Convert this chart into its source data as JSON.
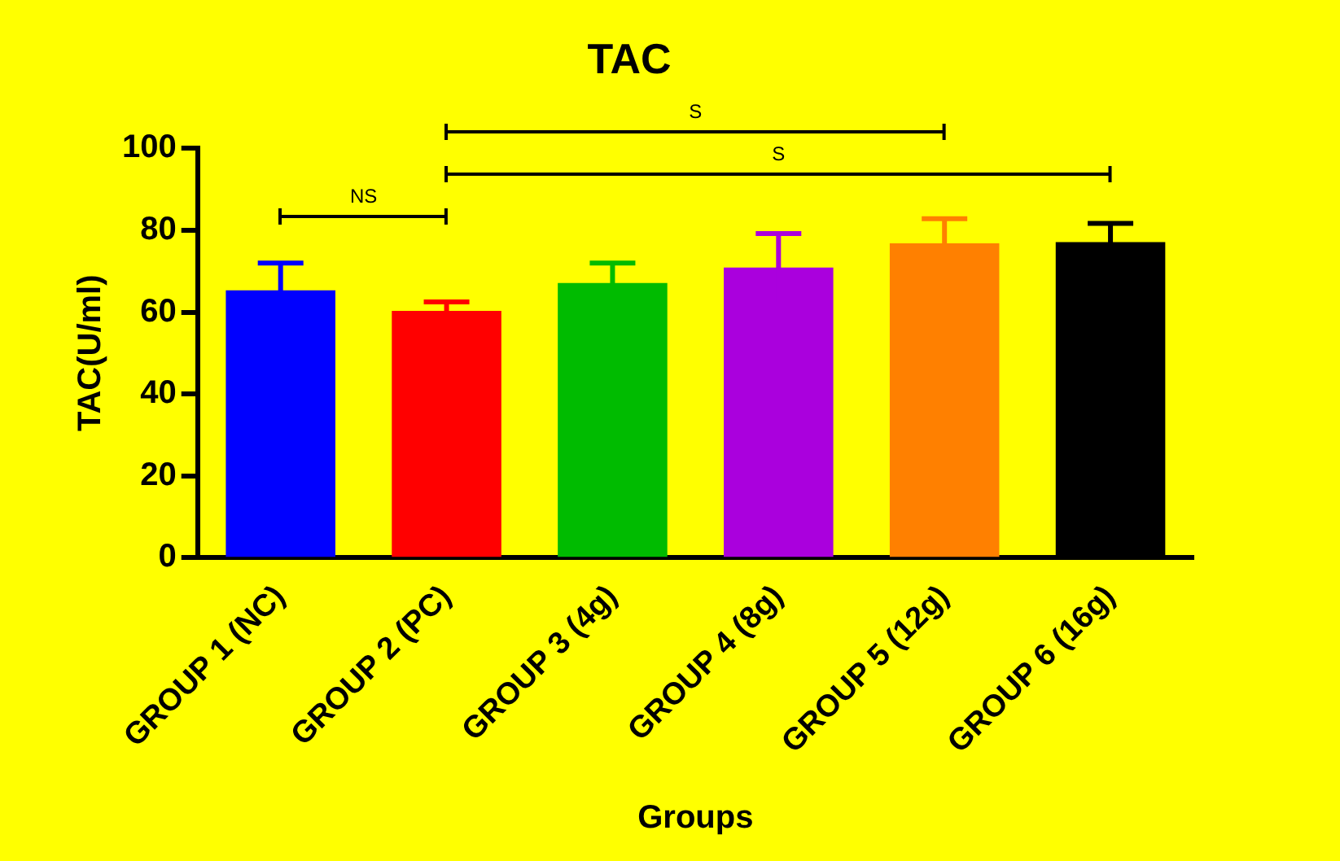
{
  "chart_data": {
    "type": "bar",
    "title": "TAC",
    "xlabel": "Groups",
    "ylabel": "TAC(U/ml)",
    "categories": [
      "GROUP 1 (NC)",
      "GROUP 2 (PC)",
      "GROUP 3 (4g)",
      "GROUP 4 (8g)",
      "GROUP 5 (12g)",
      "GROUP 6 (16g)"
    ],
    "values": [
      65.3,
      60.3,
      67.1,
      70.9,
      76.8,
      77.1
    ],
    "errors": [
      6.7,
      2.2,
      4.9,
      8.3,
      6.0,
      4.6
    ],
    "colors": [
      "#0000ff",
      "#ff0000",
      "#00bb00",
      "#aa00dd",
      "#ff8000",
      "#000000"
    ],
    "ylim": [
      0,
      100
    ],
    "yticks": [
      0,
      20,
      40,
      60,
      80,
      100
    ],
    "grid": false,
    "legend": false,
    "annotations": [
      "NS",
      "S",
      "S"
    ]
  }
}
